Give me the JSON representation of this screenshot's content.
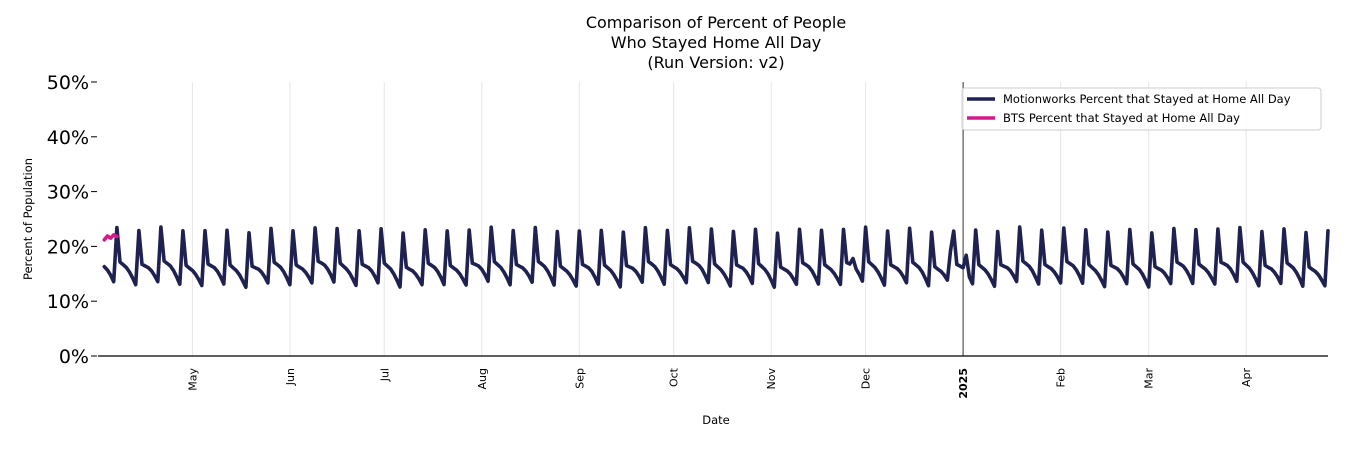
{
  "chart_data": {
    "type": "line",
    "title": [
      "Comparison of Percent of People",
      "Who Stayed Home All Day",
      "(Run Version: v2)"
    ],
    "xlabel": "Date",
    "ylabel": "Percent of Population",
    "ylim": [
      0,
      50
    ],
    "yticks": [
      {
        "value": 0,
        "label": "0%"
      },
      {
        "value": 10,
        "label": "10%"
      },
      {
        "value": 20,
        "label": "20%"
      },
      {
        "value": 30,
        "label": "30%"
      },
      {
        "value": 40,
        "label": "40%"
      },
      {
        "value": 50,
        "label": "50%"
      }
    ],
    "x_domain_days": [
      0,
      391
    ],
    "x_domain_label": "Days since 2024-04-01 (approx.)",
    "xticks": [
      {
        "day": 30,
        "label": "May",
        "bold": false
      },
      {
        "day": 61,
        "label": "Jun",
        "bold": false
      },
      {
        "day": 91,
        "label": "Jul",
        "bold": false
      },
      {
        "day": 122,
        "label": "Aug",
        "bold": false
      },
      {
        "day": 153,
        "label": "Sep",
        "bold": false
      },
      {
        "day": 183,
        "label": "Oct",
        "bold": false
      },
      {
        "day": 214,
        "label": "Nov",
        "bold": false
      },
      {
        "day": 244,
        "label": "Dec",
        "bold": false
      },
      {
        "day": 275,
        "label": "2025",
        "bold": true
      },
      {
        "day": 306,
        "label": "Feb",
        "bold": false
      },
      {
        "day": 334,
        "label": "Mar",
        "bold": false
      },
      {
        "day": 365,
        "label": "Apr",
        "bold": false
      }
    ],
    "vline_day": 275,
    "weekly_pattern": {
      "description": "Approximate weekly cycle: sharp Sunday peak then decline through the week",
      "weekday_values": [
        23.0,
        16.8,
        16.4,
        16.0,
        15.3,
        14.3,
        13.1
      ],
      "first_day_phase": 3
    },
    "series": [
      {
        "name": "Motionworks Percent that Stayed at Home All Day",
        "color": "#1f2251",
        "start_day": 2,
        "end_day": 391,
        "peak_overrides": {
          "16": 24.2,
          "86": 24.0,
          "240": 24.4,
          "268": 24.8,
          "282": 24.2
        },
        "holiday_bumps": [
          {
            "day": 240,
            "value": 17.8
          },
          {
            "day": 271,
            "value": 19.2
          },
          {
            "day": 276,
            "value": 18.4
          }
        ]
      },
      {
        "name": "BTS Percent that Stayed at Home All Day",
        "color": "#d6198a",
        "points": [
          [
            2,
            21.2
          ],
          [
            3,
            21.9
          ],
          [
            4,
            21.5
          ],
          [
            5,
            22.1
          ],
          [
            6,
            21.8
          ]
        ]
      }
    ],
    "legend": {
      "position": "top-right",
      "entries": [
        {
          "label": "Motionworks Percent that Stayed at Home All Day",
          "color": "#1f2251"
        },
        {
          "label": "BTS Percent that Stayed at Home All Day",
          "color": "#d6198a"
        }
      ]
    },
    "grid": {
      "x": true,
      "y": false
    }
  }
}
